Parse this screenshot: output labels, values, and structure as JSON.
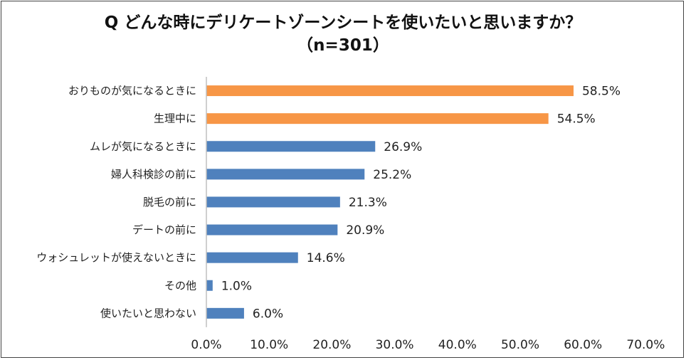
{
  "chart_data": {
    "type": "bar",
    "orientation": "horizontal",
    "title": "Q どんな時にデリケートゾーンシートを使いたいと思いますか？",
    "subtitle": "（n=301）",
    "categories": [
      "おりものが気になるときに",
      "生理中に",
      "ムレが気になるときに",
      "婦人科検診の前に",
      "脱毛の前に",
      "デートの前に",
      "ウォシュレットが使えないときに",
      "その他",
      "使いたいと思わない"
    ],
    "values": [
      58.5,
      54.5,
      26.9,
      25.2,
      21.3,
      20.9,
      14.6,
      1.0,
      6.0
    ],
    "value_labels": [
      "58.5%",
      "54.5%",
      "26.9%",
      "25.2%",
      "21.3%",
      "20.9%",
      "14.6%",
      "1.0%",
      "6.0%"
    ],
    "xlim": [
      0,
      70
    ],
    "xticks": [
      "0.0%",
      "10.0%",
      "20.0%",
      "30.0%",
      "40.0%",
      "50.0%",
      "60.0%",
      "70.0%"
    ],
    "xlabel": "",
    "ylabel": "",
    "grid": false,
    "colors": {
      "highlight": "#f79646",
      "default": "#4f81bd",
      "axis": "#bfbfbf"
    },
    "highlight_count": 2
  }
}
